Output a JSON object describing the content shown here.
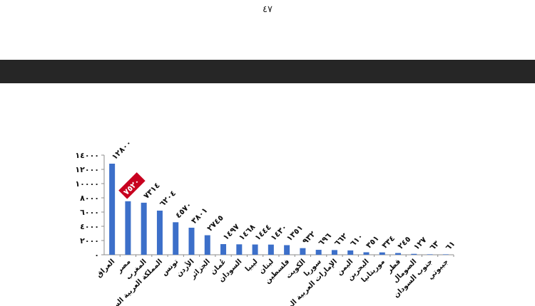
{
  "page": {
    "page_number": "٤٧"
  },
  "colors": {
    "bar": "#3c6fc9",
    "band": "#262626",
    "highlight": "#c8001f"
  },
  "chart_data": {
    "type": "bar",
    "title": "",
    "xlabel": "",
    "ylabel": "",
    "ylim": [
      0,
      14000
    ],
    "y_ticks": [
      0,
      2000,
      4000,
      6000,
      8000,
      10000,
      12000,
      14000
    ],
    "y_tick_labels": [
      "٠",
      "٢٠٠٠",
      "٤٠٠٠",
      "٦٠٠٠",
      "٨٠٠٠",
      "١٠٠٠٠",
      "١٢٠٠٠",
      "١٤٠٠٠"
    ],
    "categories": [
      "العراق",
      "مصر",
      "المغرب",
      "المملكة العربية السعو",
      "تونس",
      "الأردن",
      "الجزائر",
      "عُمان",
      "السودان",
      "ليبيا",
      "لبنان",
      "فلسطين",
      "الكويت",
      "سوريا",
      "الإمارات العربية المتـ",
      "اليمن",
      "البحرين",
      "موريتانيا",
      "قطر",
      "الصومال",
      "جنوب السودان",
      "جيبوتي"
    ],
    "values": [
      12800,
      7520,
      7314,
      6204,
      4570,
      3801,
      2745,
      1497,
      1468,
      1444,
      1430,
      1351,
      932,
      696,
      662,
      610,
      351,
      334,
      245,
      127,
      63,
      61
    ],
    "data_labels": [
      "١٢٨٠٠",
      "٧٥٢٠",
      "٧٣١٤",
      "٦٢٠٤",
      "٤٥٧٠",
      "٣٨٠١",
      "٢٧٤٥",
      "١٤٩٧",
      "١٤٦٨",
      "١٤٤٤",
      "١٤٣٠",
      "١٣٥١",
      "٩٣٢",
      "٦٩٦",
      "٦٦٢",
      "٦١٠",
      "٣٥١",
      "٣٣٤",
      "٢٤٥",
      "١٢٧",
      "٦٣",
      "٦١"
    ],
    "highlighted_index": 1,
    "grid": false,
    "legend": "none"
  }
}
